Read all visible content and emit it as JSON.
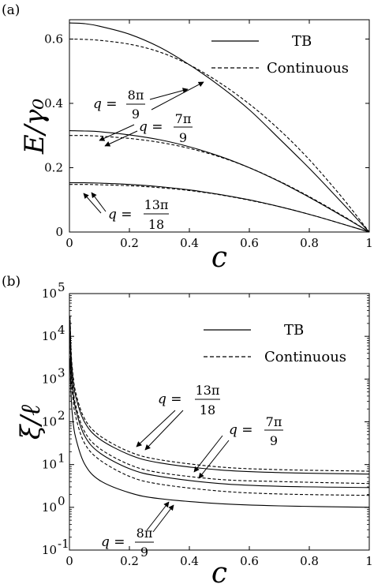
{
  "chart_data": [
    {
      "panel_label": "(a)",
      "type": "line",
      "xlabel": "c",
      "ylabel": "E/γ₀",
      "xlim": [
        0,
        1
      ],
      "ylim": [
        0,
        0.66
      ],
      "xticks": [
        "0",
        "0.2",
        "0.4",
        "0.6",
        "0.8",
        "1"
      ],
      "yticks": [
        "0",
        "0.2",
        "0.4",
        "0.6"
      ],
      "legend": {
        "placement": "top-right",
        "entries": [
          {
            "label": "TB",
            "style": "solid"
          },
          {
            "label": "Continuous",
            "style": "dashed"
          }
        ]
      },
      "series": [
        {
          "q": "8π/9",
          "style": "solid",
          "x": [
            0,
            0.05,
            0.1,
            0.2,
            0.3,
            0.4,
            0.5,
            0.6,
            0.7,
            0.8,
            0.9,
            0.95,
            1
          ],
          "y": [
            0.65,
            0.648,
            0.64,
            0.615,
            0.575,
            0.52,
            0.455,
            0.38,
            0.29,
            0.198,
            0.1,
            0.05,
            0.0
          ]
        },
        {
          "q": "8π/9",
          "style": "dashed",
          "x": [
            0,
            0.05,
            0.1,
            0.2,
            0.3,
            0.4,
            0.5,
            0.6,
            0.7,
            0.8,
            0.9,
            0.95,
            1
          ],
          "y": [
            0.6,
            0.599,
            0.596,
            0.584,
            0.56,
            0.52,
            0.465,
            0.398,
            0.318,
            0.225,
            0.118,
            0.06,
            0.0
          ]
        },
        {
          "q": "7π/9",
          "style": "solid",
          "x": [
            0,
            0.05,
            0.1,
            0.2,
            0.3,
            0.4,
            0.5,
            0.6,
            0.7,
            0.8,
            0.9,
            0.95,
            1
          ],
          "y": [
            0.315,
            0.314,
            0.312,
            0.302,
            0.287,
            0.265,
            0.236,
            0.2,
            0.157,
            0.108,
            0.055,
            0.028,
            0.0
          ]
        },
        {
          "q": "7π/9",
          "style": "dashed",
          "x": [
            0,
            0.05,
            0.1,
            0.2,
            0.3,
            0.4,
            0.5,
            0.6,
            0.7,
            0.8,
            0.9,
            0.95,
            1
          ],
          "y": [
            0.3,
            0.3,
            0.298,
            0.291,
            0.279,
            0.26,
            0.234,
            0.2,
            0.158,
            0.11,
            0.057,
            0.029,
            0.0
          ]
        },
        {
          "q": "13π/18",
          "style": "solid",
          "x": [
            0,
            0.05,
            0.1,
            0.2,
            0.3,
            0.4,
            0.5,
            0.6,
            0.7,
            0.8,
            0.9,
            0.95,
            1
          ],
          "y": [
            0.153,
            0.153,
            0.152,
            0.148,
            0.141,
            0.131,
            0.117,
            0.1,
            0.079,
            0.055,
            0.028,
            0.014,
            0.0
          ]
        },
        {
          "q": "13π/18",
          "style": "dashed",
          "x": [
            0,
            0.05,
            0.1,
            0.2,
            0.3,
            0.4,
            0.5,
            0.6,
            0.7,
            0.8,
            0.9,
            0.95,
            1
          ],
          "y": [
            0.148,
            0.148,
            0.147,
            0.144,
            0.138,
            0.129,
            0.116,
            0.099,
            0.079,
            0.055,
            0.028,
            0.014,
            0.0
          ]
        }
      ],
      "annotations": [
        {
          "text_lhs": "q =",
          "num": "8π",
          "den": "9"
        },
        {
          "text_lhs": "q =",
          "num": "7π",
          "den": "9"
        },
        {
          "text_lhs": "q =",
          "num": "13π",
          "den": "18"
        }
      ]
    },
    {
      "panel_label": "(b)",
      "type": "line",
      "xlabel": "c",
      "ylabel": "ξ/ℓ",
      "yscale": "log",
      "xlim": [
        0,
        1
      ],
      "ylim": [
        0.1,
        100000
      ],
      "xticks": [
        "0",
        "0.2",
        "0.4",
        "0.6",
        "0.8",
        "1"
      ],
      "yticks": [
        {
          "value": 0.1,
          "base": "10",
          "exp": "-1"
        },
        {
          "value": 1,
          "base": "10",
          "exp": "0"
        },
        {
          "value": 10,
          "base": "10",
          "exp": "1"
        },
        {
          "value": 100,
          "base": "10",
          "exp": "2"
        },
        {
          "value": 1000,
          "base": "10",
          "exp": "3"
        },
        {
          "value": 10000,
          "base": "10",
          "exp": "4"
        },
        {
          "value": 100000,
          "base": "10",
          "exp": "5"
        }
      ],
      "legend": {
        "placement": "top-right",
        "entries": [
          {
            "label": "TB",
            "style": "solid"
          },
          {
            "label": "Continuous",
            "style": "dashed"
          }
        ]
      },
      "series": [
        {
          "q": "13π/18",
          "style": "dashed",
          "x": [
            0.002,
            0.005,
            0.01,
            0.02,
            0.05,
            0.1,
            0.2,
            0.3,
            0.5,
            0.7,
            1.0
          ],
          "y": [
            30000,
            5500,
            1700,
            520,
            120,
            48,
            20,
            13,
            8.8,
            7.6,
            7.0
          ]
        },
        {
          "q": "13π/18",
          "style": "solid",
          "x": [
            0.002,
            0.005,
            0.01,
            0.02,
            0.05,
            0.1,
            0.2,
            0.3,
            0.5,
            0.7,
            1.0
          ],
          "y": [
            25000,
            4500,
            1400,
            420,
            100,
            40,
            17,
            11,
            7.5,
            6.5,
            6.0
          ]
        },
        {
          "q": "7π/9",
          "style": "dashed",
          "x": [
            0.002,
            0.005,
            0.01,
            0.02,
            0.05,
            0.1,
            0.2,
            0.3,
            0.5,
            0.7,
            1.0
          ],
          "y": [
            15000,
            2800,
            850,
            260,
            60,
            24,
            10,
            6.5,
            4.5,
            4.0,
            3.6
          ]
        },
        {
          "q": "7π/9",
          "style": "solid",
          "x": [
            0.002,
            0.005,
            0.01,
            0.02,
            0.05,
            0.1,
            0.2,
            0.3,
            0.5,
            0.7,
            1.0
          ],
          "y": [
            12000,
            2200,
            680,
            210,
            48,
            19,
            8.0,
            5.3,
            3.6,
            3.1,
            2.9
          ]
        },
        {
          "q": "8π/9",
          "style": "dashed",
          "x": [
            0.002,
            0.005,
            0.01,
            0.02,
            0.05,
            0.1,
            0.2,
            0.3,
            0.5,
            0.7,
            1.0
          ],
          "y": [
            8000,
            1500,
            450,
            140,
            32,
            13,
            5.3,
            3.5,
            2.4,
            2.05,
            1.9
          ]
        },
        {
          "q": "8π/9",
          "style": "solid",
          "x": [
            0.002,
            0.005,
            0.01,
            0.02,
            0.05,
            0.1,
            0.2,
            0.3,
            0.5,
            0.7,
            1.0
          ],
          "y": [
            3000,
            500,
            140,
            45,
            10.5,
            4.3,
            2.2,
            1.6,
            1.22,
            1.08,
            1.0
          ]
        }
      ],
      "annotations": [
        {
          "text_lhs": "q =",
          "num": "13π",
          "den": "18"
        },
        {
          "text_lhs": "q =",
          "num": "7π",
          "den": "9"
        },
        {
          "text_lhs": "q =",
          "num": "8π",
          "den": "9"
        }
      ]
    }
  ]
}
